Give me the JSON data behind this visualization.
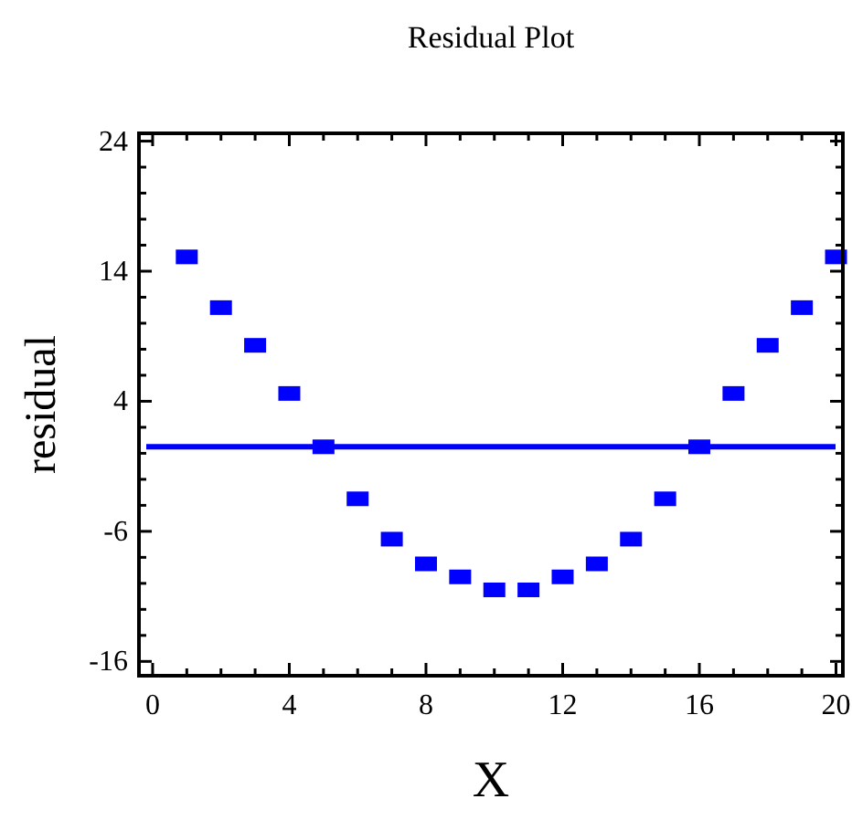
{
  "chart_data": {
    "type": "scatter",
    "title": "Residual Plot",
    "xlabel": "X",
    "ylabel": "residual",
    "x": [
      1,
      2,
      3,
      4,
      5,
      6,
      7,
      8,
      9,
      10,
      11,
      12,
      13,
      14,
      15,
      16,
      17,
      18,
      19,
      20
    ],
    "series": [
      {
        "color": "#0000ff",
        "values": [
          15.1,
          11.2,
          8.3,
          4.6,
          0.5,
          -3.5,
          -6.6,
          -8.5,
          -9.5,
          -10.5,
          -10.5,
          -9.5,
          -8.5,
          -6.6,
          -3.5,
          0.5,
          4.6,
          8.3,
          11.2,
          15.1
        ]
      }
    ],
    "marker": "square",
    "ref_lines": [
      {
        "axis": "y",
        "value": 0.5,
        "color": "#0000ff"
      }
    ],
    "xlim": [
      -0.4,
      20.2
    ],
    "ylim": [
      -17.1,
      24.6
    ],
    "xticks": [
      0,
      {
        "value": 1,
        "label": null
      },
      {
        "value": 2,
        "label": null
      },
      {
        "value": 3,
        "label": null
      },
      4,
      {
        "value": 5,
        "label": null
      },
      {
        "value": 6,
        "label": null
      },
      {
        "value": 7,
        "label": null
      },
      8,
      {
        "value": 9,
        "label": null
      },
      {
        "value": 10,
        "label": null
      },
      {
        "value": 11,
        "label": null
      },
      12,
      {
        "value": 13,
        "label": null
      },
      {
        "value": 14,
        "label": null
      },
      {
        "value": 15,
        "label": null
      },
      16,
      {
        "value": 17,
        "label": null
      },
      {
        "value": 18,
        "label": null
      },
      {
        "value": 19,
        "label": null
      },
      20
    ],
    "yticks": [
      -16,
      {
        "value": -14,
        "label": null
      },
      {
        "value": -12,
        "label": null
      },
      {
        "value": -10,
        "label": null
      },
      {
        "value": -8,
        "label": null
      },
      -6,
      {
        "value": -4,
        "label": null
      },
      {
        "value": -2,
        "label": null
      },
      {
        "value": 0,
        "label": null
      },
      {
        "value": 2,
        "label": null
      },
      4,
      {
        "value": 6,
        "label": null
      },
      {
        "value": 8,
        "label": null
      },
      {
        "value": 10,
        "label": null
      },
      {
        "value": 12,
        "label": null
      },
      14,
      {
        "value": 16,
        "label": null
      },
      {
        "value": 18,
        "label": null
      },
      {
        "value": 20,
        "label": null
      },
      {
        "value": 22,
        "label": null
      },
      24
    ],
    "grid": false
  }
}
